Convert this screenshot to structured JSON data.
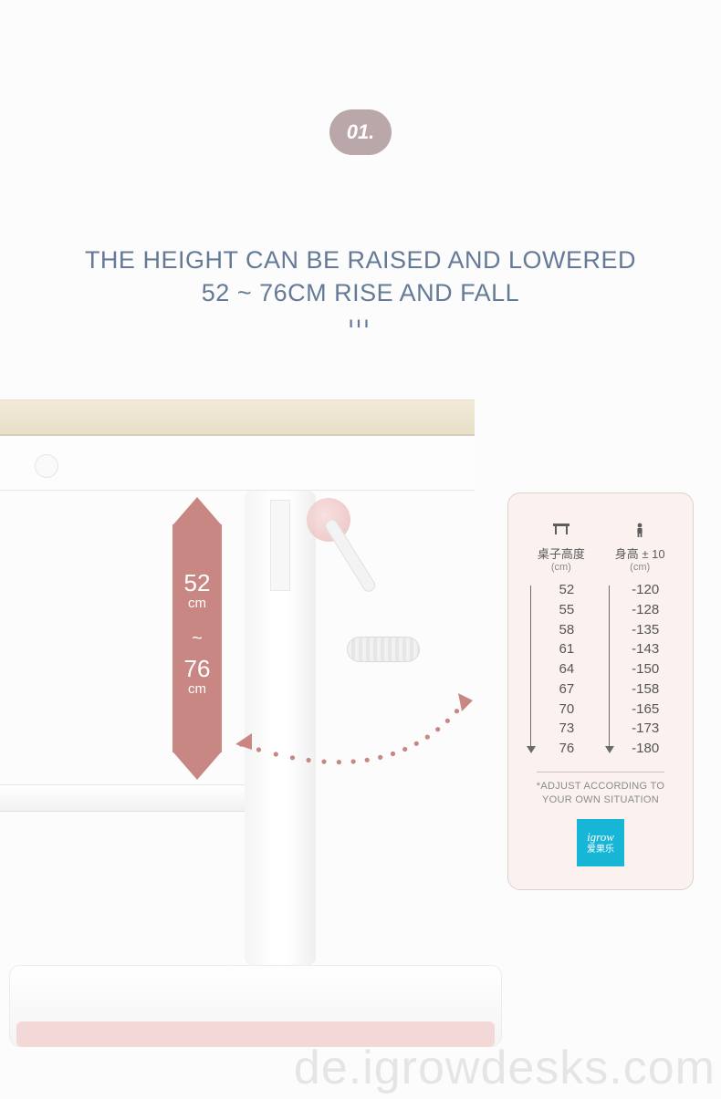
{
  "colors": {
    "accent_rose": "#c98784",
    "badge_bg": "#b9a7a9",
    "headline": "#647a96",
    "card_bg": "#fbf2f0",
    "card_border": "#d8d2d1",
    "logo_bg": "#18b6d6",
    "wood": "#efe6d1",
    "foot_pink": "#f4d8d7"
  },
  "badge": {
    "label": "01."
  },
  "headline": {
    "line1": "THE HEIGHT CAN BE RAISED AND LOWERED",
    "line2": "52 ~ 76CM RISE AND FALL"
  },
  "range_callout": {
    "min_value": "52",
    "max_value": "76",
    "unit": "cm",
    "separator": "~"
  },
  "arc": {
    "dot_color": "#c98784",
    "dot_radius": 2.6,
    "dot_count": 18
  },
  "card": {
    "col1": {
      "icon": "desk",
      "header": "桌子高度",
      "unit": "(cm)",
      "values": [
        "52",
        "55",
        "58",
        "61",
        "64",
        "67",
        "70",
        "73",
        "76"
      ]
    },
    "col2": {
      "icon": "person",
      "header": "身高 ± 10",
      "unit": "(cm)",
      "values": [
        "-120",
        "-128",
        "-135",
        "-143",
        "-150",
        "-158",
        "-165",
        "-173",
        "-180"
      ]
    },
    "note": "*ADJUST ACCORDING TO YOUR OWN SITUATION",
    "logo": {
      "en": "igrow",
      "cn": "爱果乐"
    }
  },
  "watermark": "de.igrowdesks.com"
}
